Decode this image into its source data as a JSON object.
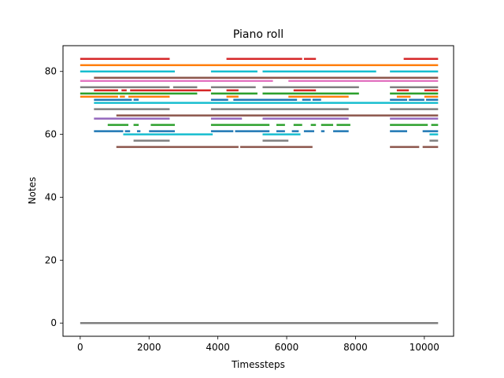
{
  "chart_data": {
    "type": "line",
    "title": "Piano roll",
    "xlabel": "Timessteps",
    "ylabel": "Notes",
    "xlim": [
      -500,
      10850
    ],
    "ylim": [
      -4.2,
      88.2
    ],
    "xticks": [
      0,
      2000,
      4000,
      6000,
      8000,
      10000
    ],
    "yticks": [
      0,
      20,
      40,
      60,
      80
    ],
    "grid": false,
    "series": [
      {
        "note": 84,
        "color": "#d62728",
        "segments": [
          [
            0,
            2600
          ],
          [
            4250,
            6450
          ],
          [
            6500,
            6850
          ],
          [
            9400,
            10400
          ]
        ]
      },
      {
        "note": 82,
        "color": "#ff7f0e",
        "segments": [
          [
            0,
            10400
          ]
        ]
      },
      {
        "note": 80,
        "color": "#17becf",
        "segments": [
          [
            0,
            2750
          ],
          [
            3800,
            5150
          ],
          [
            5300,
            8600
          ],
          [
            9000,
            10400
          ]
        ]
      },
      {
        "note": 78,
        "color": "#8c564b",
        "segments": [
          [
            400,
            10400
          ]
        ]
      },
      {
        "note": 77,
        "color": "#e377c2",
        "segments": [
          [
            0,
            5600
          ],
          [
            6050,
            10400
          ]
        ]
      },
      {
        "note": 75,
        "color": "#7f7f7f",
        "segments": [
          [
            0,
            2600
          ],
          [
            2700,
            3400
          ],
          [
            3800,
            5100
          ],
          [
            5300,
            8100
          ],
          [
            9000,
            10400
          ]
        ]
      },
      {
        "note": 74,
        "color": "#d62728",
        "segments": [
          [
            400,
            1100
          ],
          [
            1200,
            1350
          ],
          [
            1450,
            3800
          ],
          [
            4250,
            4600
          ],
          [
            6200,
            6850
          ],
          [
            9200,
            9550
          ],
          [
            10000,
            10400
          ]
        ]
      },
      {
        "note": 73,
        "color": "#2ca02c",
        "segments": [
          [
            0,
            3400
          ],
          [
            3800,
            5150
          ],
          [
            5300,
            8100
          ],
          [
            9000,
            10400
          ]
        ]
      },
      {
        "note": 72,
        "color": "#ff7f0e",
        "segments": [
          [
            0,
            1100
          ],
          [
            1150,
            1300
          ],
          [
            1400,
            2600
          ],
          [
            4250,
            4600
          ],
          [
            6050,
            7800
          ],
          [
            9200,
            9600
          ],
          [
            10000,
            10400
          ]
        ]
      },
      {
        "note": 71,
        "color": "#1f77b4",
        "segments": [
          [
            400,
            1500
          ],
          [
            1550,
            1700
          ],
          [
            3800,
            4300
          ],
          [
            4450,
            6300
          ],
          [
            6450,
            6700
          ],
          [
            6750,
            7000
          ],
          [
            9000,
            9500
          ],
          [
            9550,
            10000
          ],
          [
            10050,
            10400
          ]
        ]
      },
      {
        "note": 70,
        "color": "#17becf",
        "segments": [
          [
            400,
            10400
          ]
        ]
      },
      {
        "note": 68,
        "color": "#7f7f7f",
        "segments": [
          [
            400,
            2600
          ],
          [
            3800,
            7800
          ],
          [
            9000,
            10400
          ]
        ]
      },
      {
        "note": 66,
        "color": "#8c564b",
        "segments": [
          [
            1050,
            10400
          ]
        ]
      },
      {
        "note": 65,
        "color": "#9467bd",
        "segments": [
          [
            400,
            2600
          ],
          [
            3800,
            4700
          ],
          [
            5300,
            7800
          ],
          [
            9000,
            10400
          ]
        ]
      },
      {
        "note": 63,
        "color": "#2ca02c",
        "segments": [
          [
            800,
            1400
          ],
          [
            1550,
            1700
          ],
          [
            2050,
            2750
          ],
          [
            3800,
            5500
          ],
          [
            5700,
            5950
          ],
          [
            6200,
            6450
          ],
          [
            6700,
            6850
          ],
          [
            7000,
            7350
          ],
          [
            7450,
            7850
          ],
          [
            9000,
            10100
          ],
          [
            10200,
            10400
          ]
        ]
      },
      {
        "note": 61,
        "color": "#1f77b4",
        "segments": [
          [
            400,
            1250
          ],
          [
            1300,
            1450
          ],
          [
            1650,
            1750
          ],
          [
            2000,
            2750
          ],
          [
            3800,
            4450
          ],
          [
            4500,
            5500
          ],
          [
            5700,
            5950
          ],
          [
            6150,
            6350
          ],
          [
            6500,
            6800
          ],
          [
            7000,
            7100
          ],
          [
            7350,
            7800
          ],
          [
            9000,
            9500
          ],
          [
            9950,
            10400
          ]
        ]
      },
      {
        "note": 60,
        "color": "#17becf",
        "segments": [
          [
            1250,
            3850
          ],
          [
            5300,
            6400
          ],
          [
            10150,
            10400
          ]
        ]
      },
      {
        "note": 58,
        "color": "#7f7f7f",
        "segments": [
          [
            1550,
            2600
          ],
          [
            5300,
            6050
          ],
          [
            10150,
            10400
          ]
        ]
      },
      {
        "note": 56,
        "color": "#8c564b",
        "segments": [
          [
            1050,
            4600
          ],
          [
            4650,
            6750
          ],
          [
            9000,
            9850
          ],
          [
            9950,
            10400
          ]
        ]
      },
      {
        "note": 0,
        "color": "#7f7f7f",
        "segments": [
          [
            0,
            10400
          ]
        ]
      }
    ]
  }
}
